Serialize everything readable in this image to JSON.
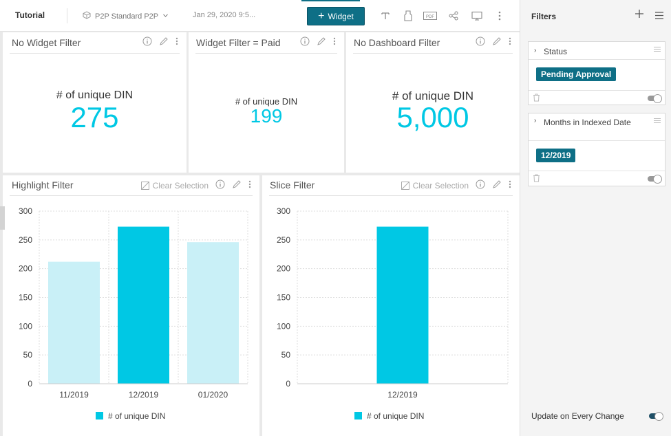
{
  "toolbar": {
    "title": "Tutorial",
    "dashboard_name": "P2P Standard P2P",
    "date": "Jan 29, 2020 9:5...",
    "widget_button": "Widget"
  },
  "kpis": [
    {
      "title": "No Widget Filter",
      "label": "# of unique DIN",
      "value": "275"
    },
    {
      "title": "Widget Filter = Paid",
      "label": "# of unique DIN",
      "value": "199"
    },
    {
      "title": "No Dashboard Filter",
      "label": "# of unique DIN",
      "value": "5,000"
    }
  ],
  "highlight_panel": {
    "title": "Highlight Filter",
    "clear_label": "Clear Selection"
  },
  "slice_panel": {
    "title": "Slice Filter",
    "clear_label": "Clear Selection"
  },
  "chart_data": [
    {
      "type": "bar",
      "title": "Highlight Filter",
      "categories": [
        "11/2019",
        "12/2019",
        "01/2020"
      ],
      "series": [
        {
          "name": "# of unique DIN",
          "values": [
            212,
            273,
            246
          ]
        }
      ],
      "highlighted_category": "12/2019",
      "ylim": [
        0,
        300
      ],
      "yticks": [
        0,
        50,
        100,
        150,
        200,
        250,
        300
      ],
      "grid": true,
      "legend": "bottom-center",
      "colors": {
        "bar": "#00c8e4",
        "dimmed": "#c9f0f7"
      }
    },
    {
      "type": "bar",
      "title": "Slice Filter",
      "categories": [
        "12/2019"
      ],
      "series": [
        {
          "name": "# of unique DIN",
          "values": [
            273
          ]
        }
      ],
      "ylim": [
        0,
        300
      ],
      "yticks": [
        0,
        50,
        100,
        150,
        200,
        250,
        300
      ],
      "grid": true,
      "legend": "bottom-center",
      "colors": {
        "bar": "#00c8e4"
      }
    }
  ],
  "filters": {
    "header": "Filters",
    "items": [
      {
        "name": "Status",
        "value": "Pending Approval"
      },
      {
        "name": "Months in Indexed Date",
        "value": "12/2019"
      }
    ],
    "update_label": "Update on Every Change"
  },
  "colors": {
    "accent": "#0e6f86",
    "kpi_value": "#00c8e4",
    "toggle_on": "#1f4f66"
  }
}
